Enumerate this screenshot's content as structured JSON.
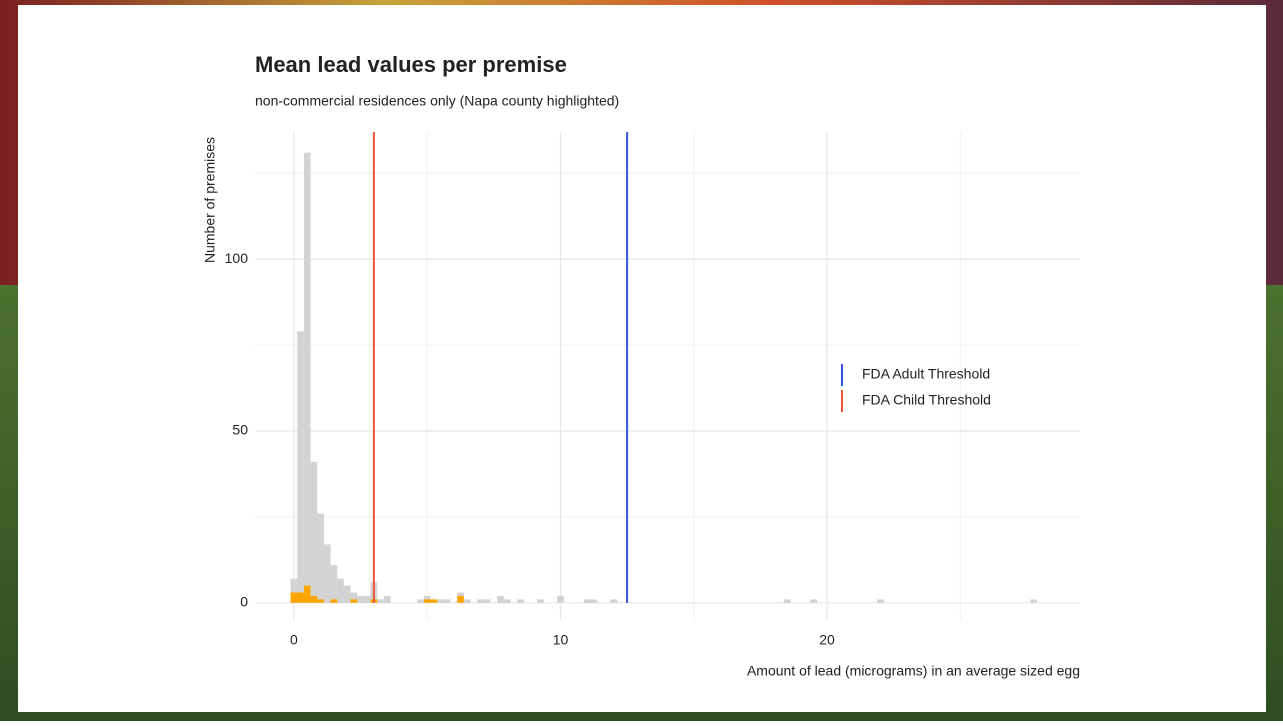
{
  "chart_data": {
    "type": "histogram",
    "title": "Mean lead values per premise",
    "subtitle": "non-commercial residences only (Napa county highlighted)",
    "x_label": "Amount of lead (micrograms) in an average sized egg",
    "y_label": "Number of premises",
    "bins": [
      -0.125,
      0.125,
      0.375,
      0.625,
      0.875,
      1.125,
      1.375,
      1.625,
      1.875,
      2.125,
      2.375,
      2.625,
      2.875,
      3.125,
      3.375,
      3.625,
      3.875,
      4.125,
      4.375,
      4.625,
      4.875,
      5.125,
      5.375,
      5.625,
      5.875,
      6.125,
      6.375,
      6.625,
      6.875,
      7.125,
      7.375,
      7.625,
      7.875,
      8.125,
      8.375,
      8.625,
      8.875,
      9.125,
      9.375,
      9.625,
      9.875,
      10.125,
      10.375,
      10.625,
      10.875,
      11.125,
      11.375,
      11.625,
      11.875,
      12.125,
      12.375,
      12.625,
      12.875,
      13.125,
      13.375,
      13.625,
      13.875,
      14.125,
      14.375,
      14.625,
      14.875,
      15.125,
      15.375,
      15.625,
      15.875,
      16.125,
      16.375,
      16.625,
      16.875,
      17.125,
      17.375,
      17.625,
      17.875,
      18.125,
      18.375,
      18.625,
      18.875,
      19.125,
      19.375,
      19.625,
      19.875,
      20.125,
      20.375,
      20.625,
      20.875,
      21.125,
      21.375,
      21.625,
      21.875,
      22.125,
      22.375,
      22.625,
      22.875,
      23.125,
      23.375,
      23.625,
      23.875,
      24.125,
      24.375,
      24.625,
      24.875,
      25.125,
      25.375,
      25.625,
      25.875,
      26.125,
      26.375,
      26.625,
      26.875,
      27.125,
      27.375,
      27.625,
      27.875,
      28.125
    ],
    "series": [
      {
        "color": "#d3d3d3",
        "values": [
          7,
          79,
          131,
          41,
          26,
          17,
          11,
          7,
          5,
          3,
          2,
          2,
          6,
          1,
          2,
          0,
          0,
          0,
          0,
          1,
          2,
          1,
          1,
          1,
          0,
          3,
          1,
          0,
          1,
          1,
          0,
          2,
          1,
          0,
          1,
          0,
          0,
          1,
          0,
          0,
          2,
          0,
          0,
          0,
          1,
          1,
          0,
          0,
          1,
          0,
          0,
          0,
          0,
          0,
          0,
          0,
          0,
          0,
          0,
          0,
          0,
          0,
          0,
          0,
          0,
          0,
          0,
          0,
          0,
          0,
          0,
          0,
          0,
          0,
          1,
          0,
          0,
          0,
          1,
          0,
          0,
          0,
          0,
          0,
          0,
          0,
          0,
          0,
          1,
          0,
          0,
          0,
          0,
          0,
          0,
          0,
          0,
          0,
          0,
          0,
          0,
          0,
          0,
          0,
          0,
          0,
          0,
          0,
          0,
          0,
          0,
          1,
          0
        ]
      },
      {
        "color": "#ffa500",
        "values": [
          3,
          3,
          5,
          2,
          1,
          0,
          1,
          0,
          0,
          1,
          0,
          0,
          1,
          0,
          0,
          0,
          0,
          0,
          0,
          0,
          1,
          1,
          0,
          0,
          0,
          2,
          0,
          0,
          0,
          0,
          0,
          0,
          0,
          0,
          0,
          0,
          0,
          0,
          0,
          0,
          0,
          0,
          0,
          0,
          0,
          0,
          0,
          0,
          0,
          0,
          0,
          0,
          0,
          0,
          0,
          0,
          0,
          0,
          0,
          0,
          0,
          0,
          0,
          0,
          0,
          0,
          0,
          0,
          0,
          0,
          0,
          0,
          0,
          0,
          0,
          0,
          0,
          0,
          0,
          0,
          0,
          0,
          0,
          0,
          0,
          0,
          0,
          0,
          0,
          0,
          0,
          0,
          0,
          0,
          0,
          0,
          0,
          0,
          0,
          0,
          0,
          0,
          0,
          0,
          0,
          0,
          0,
          0,
          0,
          0,
          0,
          0,
          0
        ]
      }
    ],
    "vlines": [
      {
        "name": "FDA Adult Threshold",
        "value": 12.5,
        "color": "#3355e0"
      },
      {
        "name": "FDA Child Threshold",
        "value": 3,
        "color": "#e8553a"
      }
    ],
    "xlim": [
      -1.46,
      29.49
    ],
    "ylim": [
      -5,
      137
    ],
    "xticks": [
      0,
      10,
      20
    ],
    "yticks": [
      0,
      50,
      100
    ],
    "x_minor_grid": [
      5,
      15,
      25
    ],
    "y_minor_grid": [
      25,
      75,
      125
    ],
    "grid": true,
    "legend": "right"
  }
}
